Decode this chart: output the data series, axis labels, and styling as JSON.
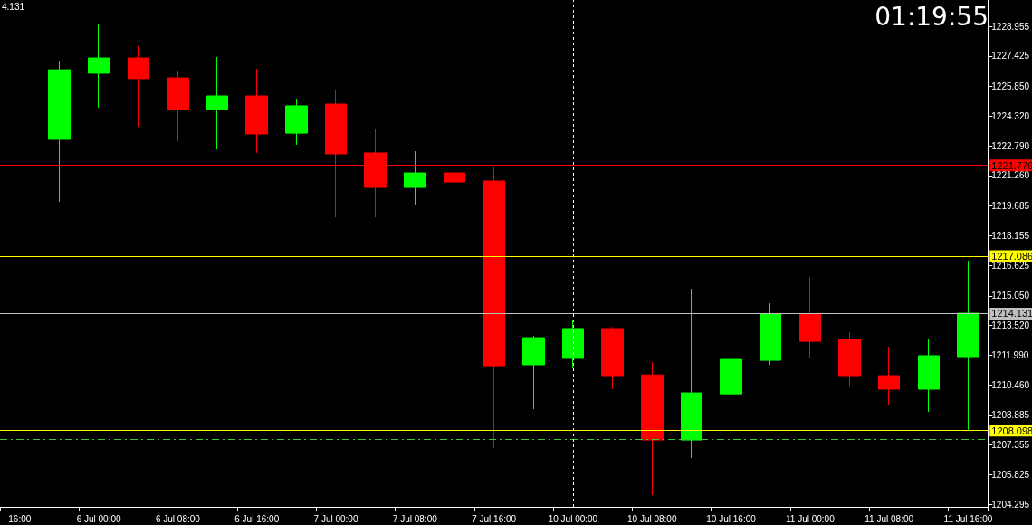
{
  "chart_data": {
    "type": "candlestick",
    "categories": [
      "16:00",
      null,
      "6 Jul 00:00",
      null,
      "6 Jul 08:00",
      null,
      "6 Jul 16:00",
      null,
      "7 Jul 00:00",
      null,
      "7 Jul 08:00",
      null,
      "7 Jul 16:00",
      null,
      "10 Jul 00:00",
      null,
      "10 Jul 08:00",
      null,
      "10 Jul 16:00",
      null,
      "11 Jul 00:00",
      null,
      "11 Jul 08:00",
      null,
      "11 Jul 16:00"
    ],
    "ohlc": [
      null,
      [
        1223.12,
        1227.18,
        1219.89,
        1226.71
      ],
      [
        1226.53,
        1229.1,
        1224.75,
        1227.32
      ],
      [
        1227.32,
        1227.93,
        1223.77,
        1226.25
      ],
      [
        1226.29,
        1226.67,
        1223.02,
        1224.66
      ],
      [
        1224.66,
        1227.37,
        1222.6,
        1225.36
      ],
      [
        1225.36,
        1226.76,
        1222.42,
        1223.4
      ],
      [
        1223.44,
        1225.22,
        1222.84,
        1224.85
      ],
      [
        1224.94,
        1225.69,
        1219.1,
        1222.37
      ],
      [
        1222.42,
        1223.68,
        1219.1,
        1220.64
      ],
      [
        1220.64,
        1222.51,
        1219.76,
        1221.39
      ],
      [
        1221.39,
        1228.35,
        1217.7,
        1220.92
      ],
      [
        1220.97,
        1221.67,
        1207.19,
        1211.44
      ],
      [
        1211.49,
        1212.98,
        1209.2,
        1212.89
      ],
      [
        1211.82,
        1213.82,
        1211.3,
        1213.36
      ],
      [
        1213.36,
        1213.45,
        1210.23,
        1210.93
      ],
      [
        1210.97,
        1211.63,
        1204.76,
        1207.61
      ],
      [
        1207.61,
        1215.41,
        1206.68,
        1210.04
      ],
      [
        1209.99,
        1215.04,
        1207.43,
        1211.77
      ],
      [
        1211.72,
        1214.66,
        1211.49,
        1214.11
      ],
      [
        1214.11,
        1216.02,
        1211.82,
        1212.7
      ],
      [
        1212.8,
        1213.17,
        1210.41,
        1210.93
      ],
      [
        1210.93,
        1212.42,
        1209.43,
        1210.23
      ],
      [
        1210.23,
        1212.8,
        1209.06,
        1211.96
      ],
      [
        1211.91,
        1216.86,
        1208.13,
        1214.15
      ]
    ],
    "colors": [
      null,
      "#00ff00",
      "#00ff00",
      "#ff0000",
      "#ff0000",
      "#00ff00",
      "#ff0000",
      "#00ff00",
      "#ff0000",
      "#ff0000",
      "#00ff00",
      "#ff0000",
      "#ff0000",
      "#00ff00",
      "#00ff00",
      "#ff0000",
      "#ff0000",
      "#00ff00",
      "#00ff00",
      "#00ff00",
      "#ff0000",
      "#ff0000",
      "#ff0000",
      "#00ff00",
      "#00ff00"
    ],
    "ylim": [
      1204.16,
      1230.31
    ],
    "yticks": [
      1204.295,
      1205.825,
      1207.355,
      {
        "value": 1208.885,
        "label": "1208.885"
      },
      {
        "value": 1210.46,
        "label": "1210.460"
      },
      {
        "value": 1211.99,
        "label": "1211.990"
      },
      {
        "value": 1213.52,
        "label": "1213.520"
      },
      {
        "value": 1215.05,
        "label": "1215.050"
      },
      1216.625,
      1218.155,
      1219.685,
      {
        "value": 1221.26,
        "label": "1221.260"
      },
      {
        "value": 1222.79,
        "label": "1222.790"
      },
      {
        "value": 1224.32,
        "label": "1224.320"
      },
      {
        "value": 1225.85,
        "label": "1225.850"
      },
      1227.425,
      1228.955
    ],
    "ref_lines": [
      {
        "axis": "y",
        "value": 1221.776,
        "label": "1221.776",
        "color": "#ff0000"
      },
      {
        "axis": "y",
        "value": 1217.086,
        "label": "1217.086",
        "color": "#ffff00"
      },
      {
        "axis": "y",
        "value": 1214.131,
        "label": "1214.131",
        "color": "#c0c0c0"
      },
      {
        "axis": "y",
        "value": 1208.098,
        "label": "1208.098",
        "color": "#ffff00"
      },
      {
        "axis": "y",
        "value": 1207.66,
        "color": "#33cc33",
        "line_style": "dashed"
      },
      {
        "axis": "x",
        "value": "10 Jul 00:00",
        "color": "#ffffff",
        "line_style": "dashed"
      }
    ],
    "annotations": [
      "4.131",
      "01:19:55"
    ],
    "grid": false
  }
}
